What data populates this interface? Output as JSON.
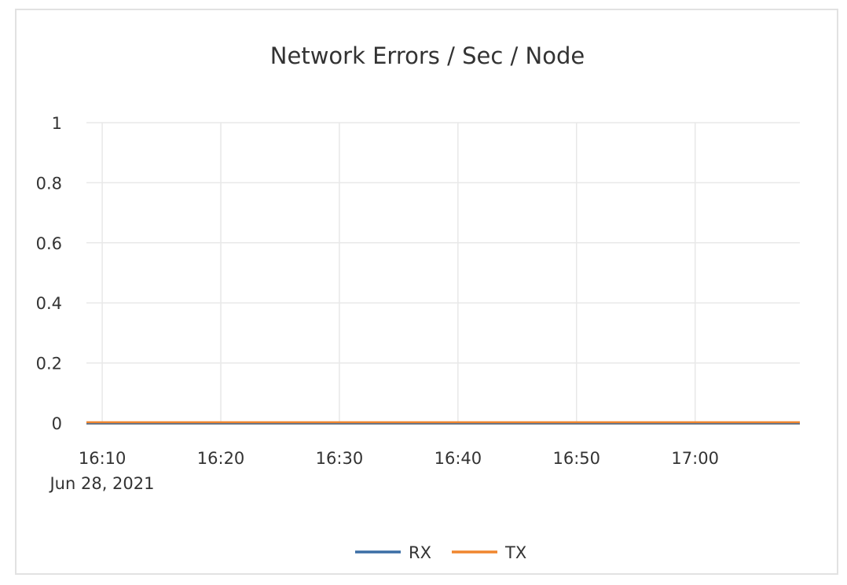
{
  "chart_data": {
    "type": "line",
    "title": "Network Errors / Sec / Node",
    "xlabel": "",
    "ylabel": "",
    "x_tick_labels": [
      "16:10",
      "16:20",
      "16:30",
      "16:40",
      "16:50",
      "17:00"
    ],
    "x_date_label": "Jun 28, 2021",
    "xlim": [
      "16:08:40",
      "17:08:50"
    ],
    "ylim": [
      0,
      1
    ],
    "y_ticks": [
      0,
      0.2,
      0.4,
      0.6,
      0.8,
      1
    ],
    "y_tick_labels": [
      "0",
      "0.2",
      "0.4",
      "0.6",
      "0.8",
      "1"
    ],
    "grid": true,
    "legend": "bottom",
    "x": [
      "16:08:40",
      "16:20",
      "16:30",
      "16:40",
      "16:50",
      "17:00",
      "17:08:50"
    ],
    "series": [
      {
        "name": "RX",
        "color": "#3b6ea5",
        "values": [
          0,
          0,
          0,
          0,
          0,
          0,
          0
        ]
      },
      {
        "name": "TX",
        "color": "#f0862f",
        "values": [
          0,
          0,
          0,
          0,
          0,
          0,
          0
        ]
      }
    ]
  }
}
